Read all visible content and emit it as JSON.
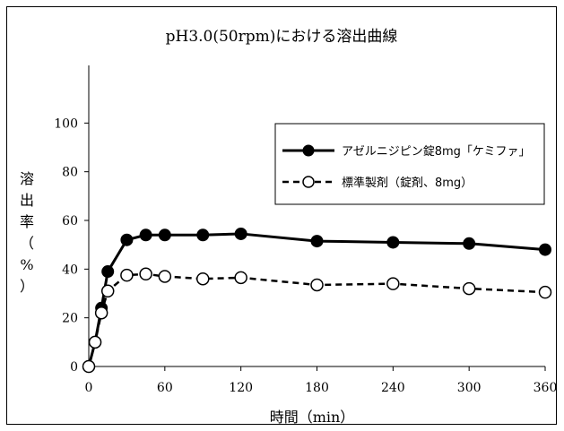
{
  "chart_data": {
    "type": "line",
    "title": "pH3.0(50rpm)における溶出曲線",
    "xlabel": "時間（min）",
    "ylabel_chars": [
      "溶",
      "出",
      "率",
      "（",
      "%",
      "）"
    ],
    "xlim": [
      0,
      360
    ],
    "ylim": [
      0,
      120
    ],
    "xticks": [
      0,
      60,
      120,
      180,
      240,
      300,
      360
    ],
    "yticks": [
      0,
      20,
      40,
      60,
      80,
      100
    ],
    "legend_position": "top-right",
    "series": [
      {
        "name": "アゼルニジピン錠8mg「ケミファ」",
        "marker": "filled-circle",
        "line": "solid",
        "color": "#000000",
        "points": [
          [
            0,
            0
          ],
          [
            5,
            10
          ],
          [
            10,
            24
          ],
          [
            15,
            39
          ],
          [
            30,
            52
          ],
          [
            45,
            54
          ],
          [
            60,
            54
          ],
          [
            90,
            54
          ],
          [
            120,
            54.5
          ],
          [
            180,
            51.5
          ],
          [
            240,
            51
          ],
          [
            300,
            50.5
          ],
          [
            360,
            48
          ]
        ]
      },
      {
        "name": "標準製剤（錠剤、8mg）",
        "marker": "open-circle",
        "line": "dashed",
        "color": "#000000",
        "points": [
          [
            0,
            0
          ],
          [
            5,
            10
          ],
          [
            10,
            22
          ],
          [
            15,
            31
          ],
          [
            30,
            37.5
          ],
          [
            45,
            38
          ],
          [
            60,
            37
          ],
          [
            90,
            36
          ],
          [
            120,
            36.5
          ],
          [
            180,
            33.5
          ],
          [
            240,
            34
          ],
          [
            300,
            32
          ],
          [
            360,
            30.5
          ]
        ]
      }
    ]
  }
}
